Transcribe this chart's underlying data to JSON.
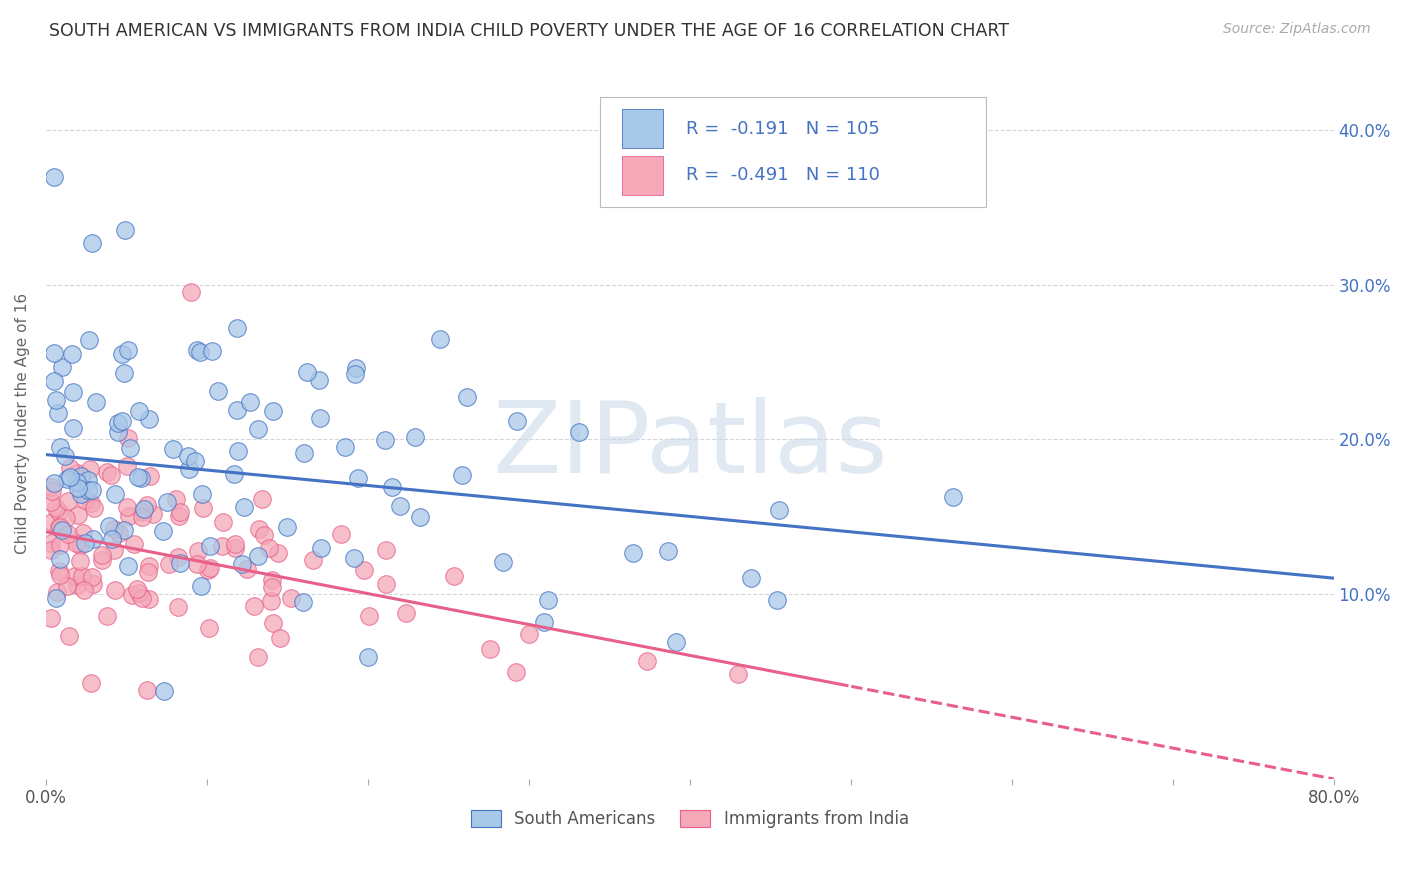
{
  "title": "SOUTH AMERICAN VS IMMIGRANTS FROM INDIA CHILD POVERTY UNDER THE AGE OF 16 CORRELATION CHART",
  "source": "Source: ZipAtlas.com",
  "ylabel": "Child Poverty Under the Age of 16",
  "yaxis_tick_vals": [
    0.1,
    0.2,
    0.3,
    0.4
  ],
  "xlim": [
    0.0,
    0.8
  ],
  "ylim": [
    -0.02,
    0.44
  ],
  "legend_labels": [
    "South Americans",
    "Immigrants from India"
  ],
  "blue_color": "#A8C8E8",
  "pink_color": "#F4A8B8",
  "blue_line_color": "#4472C4",
  "pink_line_color": "#E8608A",
  "R_blue": -0.191,
  "N_blue": 105,
  "R_pink": -0.491,
  "N_pink": 110,
  "blue_intercept": 0.19,
  "blue_slope": -0.1,
  "pink_intercept": 0.14,
  "pink_slope": -0.2,
  "watermark": "ZIPatlas",
  "background_color": "#FFFFFF",
  "grid_color": "#CCCCCC",
  "title_color": "#333333",
  "annotation_color": "#4472C4",
  "seed_blue": 42,
  "seed_pink": 99
}
